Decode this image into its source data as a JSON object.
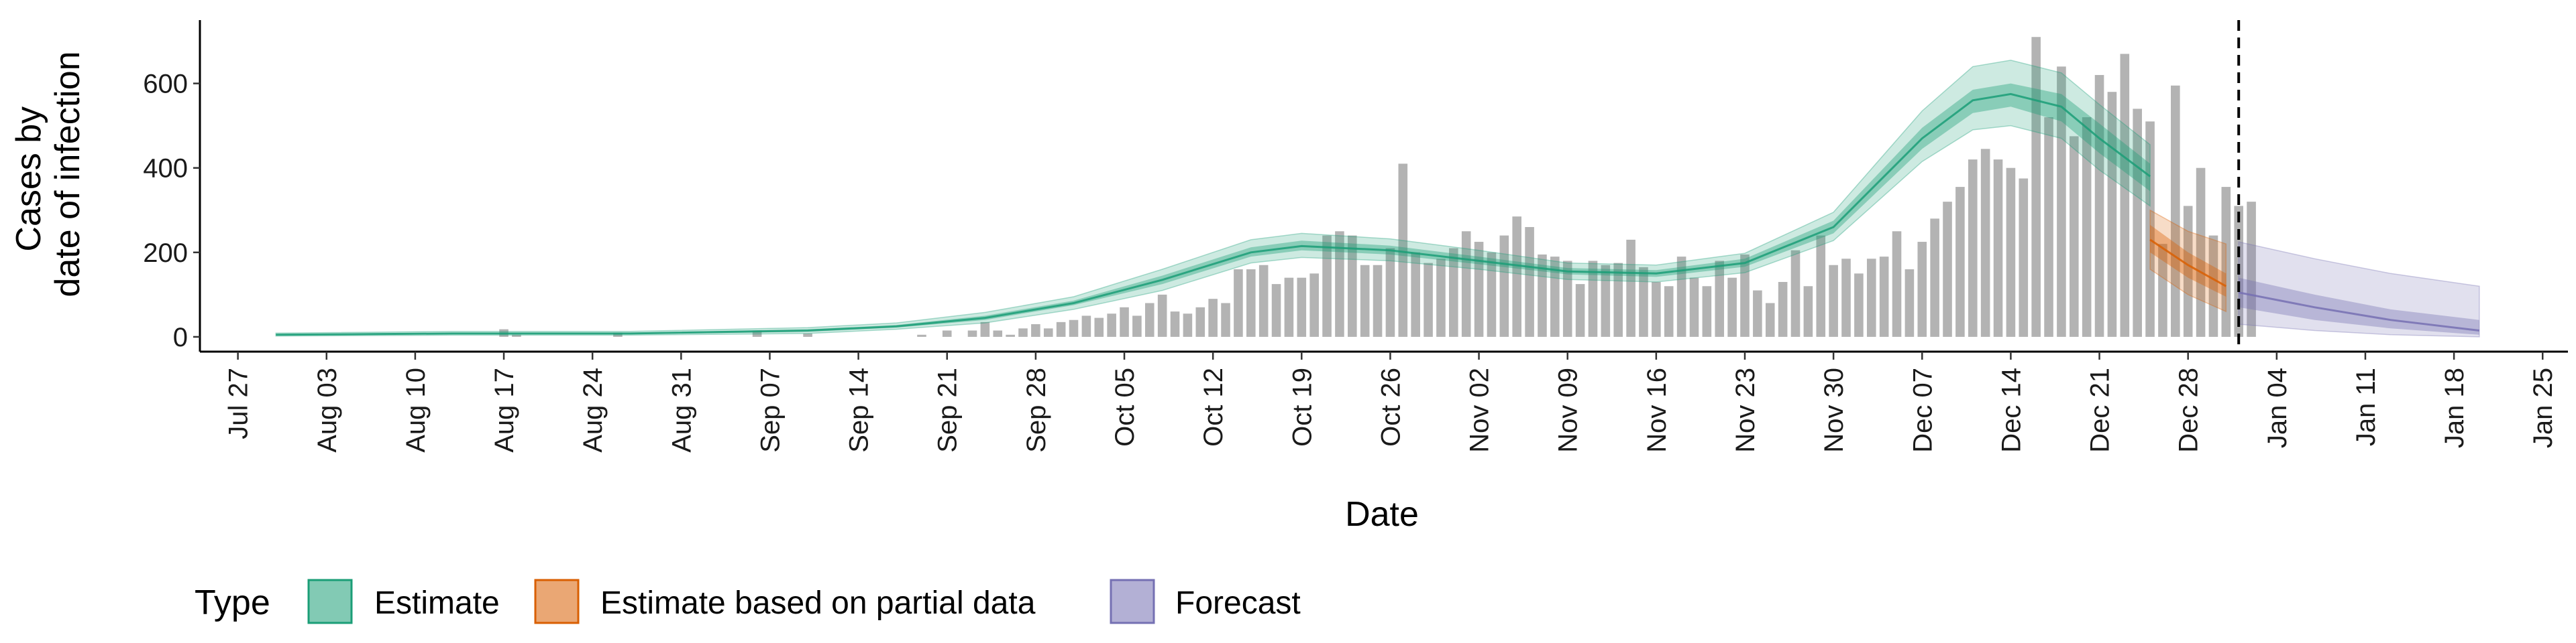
{
  "chart_data": {
    "type": "bar",
    "xlabel": "Date",
    "ylabel_lines": [
      "Cases by",
      "date of infection"
    ],
    "x_range": [
      "2020-07-24",
      "2021-01-27"
    ],
    "ylim": [
      -35,
      750
    ],
    "yticks": [
      0,
      200,
      400,
      600
    ],
    "xticks": [
      {
        "date": "2020-07-27",
        "label": "Jul 27"
      },
      {
        "date": "2020-08-03",
        "label": "Aug 03"
      },
      {
        "date": "2020-08-10",
        "label": "Aug 10"
      },
      {
        "date": "2020-08-17",
        "label": "Aug 17"
      },
      {
        "date": "2020-08-24",
        "label": "Aug 24"
      },
      {
        "date": "2020-08-31",
        "label": "Aug 31"
      },
      {
        "date": "2020-09-07",
        "label": "Sep 07"
      },
      {
        "date": "2020-09-14",
        "label": "Sep 14"
      },
      {
        "date": "2020-09-21",
        "label": "Sep 21"
      },
      {
        "date": "2020-09-28",
        "label": "Sep 28"
      },
      {
        "date": "2020-10-05",
        "label": "Oct 05"
      },
      {
        "date": "2020-10-12",
        "label": "Oct 12"
      },
      {
        "date": "2020-10-19",
        "label": "Oct 19"
      },
      {
        "date": "2020-10-26",
        "label": "Oct 26"
      },
      {
        "date": "2020-11-02",
        "label": "Nov 02"
      },
      {
        "date": "2020-11-09",
        "label": "Nov 09"
      },
      {
        "date": "2020-11-16",
        "label": "Nov 16"
      },
      {
        "date": "2020-11-23",
        "label": "Nov 23"
      },
      {
        "date": "2020-11-30",
        "label": "Nov 30"
      },
      {
        "date": "2020-12-07",
        "label": "Dec 07"
      },
      {
        "date": "2020-12-14",
        "label": "Dec 14"
      },
      {
        "date": "2020-12-21",
        "label": "Dec 21"
      },
      {
        "date": "2020-12-28",
        "label": "Dec 28"
      },
      {
        "date": "2021-01-04",
        "label": "Jan 04"
      },
      {
        "date": "2021-01-11",
        "label": "Jan 11"
      },
      {
        "date": "2021-01-18",
        "label": "Jan 18"
      },
      {
        "date": "2021-01-25",
        "label": "Jan 25"
      }
    ],
    "vline_date": "2021-01-01",
    "colors": {
      "bars": "#b3b3b3",
      "estimate": "#1b9e77",
      "estimate_partial": "#d95f02",
      "forecast": "#7570b3"
    },
    "legend": {
      "title": "Type",
      "position": "bottom",
      "items": [
        {
          "label": "Estimate",
          "key": "estimate"
        },
        {
          "label": "Estimate based on partial data",
          "key": "estimate_partial"
        },
        {
          "label": "Forecast",
          "key": "forecast"
        }
      ]
    },
    "bars": {
      "start_date": "2020-08-01",
      "values": [
        0,
        0,
        0,
        0,
        0,
        0,
        0,
        0,
        0,
        0,
        0,
        0,
        0,
        0,
        0,
        0,
        18,
        5,
        0,
        0,
        0,
        0,
        0,
        0,
        0,
        10,
        0,
        0,
        0,
        0,
        0,
        0,
        0,
        0,
        0,
        0,
        15,
        0,
        0,
        0,
        8,
        0,
        0,
        0,
        0,
        0,
        0,
        0,
        0,
        5,
        0,
        15,
        0,
        15,
        35,
        15,
        5,
        20,
        30,
        20,
        35,
        40,
        50,
        45,
        55,
        70,
        50,
        80,
        100,
        60,
        55,
        70,
        90,
        80,
        160,
        160,
        170,
        125,
        140,
        140,
        150,
        240,
        250,
        240,
        170,
        170,
        210,
        410,
        200,
        175,
        185,
        210,
        250,
        225,
        200,
        240,
        285,
        260,
        195,
        190,
        180,
        125,
        180,
        170,
        175,
        230,
        165,
        130,
        120,
        190,
        140,
        120,
        180,
        140,
        195,
        110,
        80,
        130,
        205,
        120,
        240,
        170,
        185,
        150,
        185,
        190,
        250,
        160,
        225,
        280,
        320,
        355,
        420,
        445,
        420,
        400,
        375,
        710,
        520,
        640,
        475,
        520,
        620,
        580,
        670,
        540,
        510,
        220,
        595,
        310,
        400,
        240,
        355,
        310,
        320
      ]
    },
    "series": [
      {
        "name": "Estimate",
        "key": "estimate",
        "x": [
          "2020-07-30",
          "2020-08-13",
          "2020-08-27",
          "2020-09-10",
          "2020-09-17",
          "2020-09-24",
          "2020-10-01",
          "2020-10-08",
          "2020-10-15",
          "2020-10-19",
          "2020-10-26",
          "2020-11-02",
          "2020-11-09",
          "2020-11-16",
          "2020-11-23",
          "2020-11-30",
          "2020-12-07",
          "2020-12-11",
          "2020-12-14",
          "2020-12-18",
          "2020-12-21",
          "2020-12-25"
        ],
        "median": [
          5,
          8,
          8,
          15,
          25,
          45,
          80,
          135,
          200,
          215,
          205,
          180,
          155,
          150,
          175,
          260,
          470,
          560,
          575,
          545,
          470,
          380
        ],
        "lower_50": [
          3,
          6,
          6,
          12,
          22,
          40,
          75,
          125,
          190,
          205,
          195,
          172,
          148,
          142,
          166,
          245,
          445,
          530,
          545,
          510,
          435,
          345
        ],
        "upper_50": [
          7,
          10,
          10,
          18,
          28,
          50,
          86,
          145,
          212,
          228,
          216,
          190,
          163,
          158,
          185,
          275,
          495,
          585,
          600,
          575,
          505,
          410
        ],
        "lower_90": [
          2,
          4,
          4,
          8,
          18,
          33,
          65,
          110,
          175,
          188,
          180,
          160,
          136,
          130,
          152,
          228,
          415,
          490,
          500,
          470,
          395,
          310
        ],
        "upper_90": [
          9,
          13,
          13,
          22,
          33,
          58,
          95,
          160,
          230,
          245,
          232,
          205,
          175,
          170,
          198,
          295,
          535,
          640,
          655,
          625,
          550,
          455
        ]
      },
      {
        "name": "Estimate based on partial data",
        "key": "estimate_partial",
        "x": [
          "2020-12-25",
          "2020-12-28",
          "2020-12-31"
        ],
        "median": [
          230,
          170,
          120
        ],
        "lower_50": [
          200,
          140,
          95
        ],
        "upper_50": [
          265,
          200,
          150
        ],
        "lower_90": [
          160,
          100,
          60
        ],
        "upper_90": [
          300,
          250,
          220
        ]
      },
      {
        "name": "Forecast",
        "key": "forecast",
        "x": [
          "2021-01-01",
          "2021-01-07",
          "2021-01-13",
          "2021-01-20"
        ],
        "median": [
          105,
          70,
          40,
          15
        ],
        "lower_50": [
          70,
          40,
          20,
          5
        ],
        "upper_50": [
          140,
          100,
          65,
          40
        ],
        "lower_90": [
          30,
          15,
          5,
          0
        ],
        "upper_90": [
          225,
          185,
          150,
          120
        ]
      }
    ]
  }
}
